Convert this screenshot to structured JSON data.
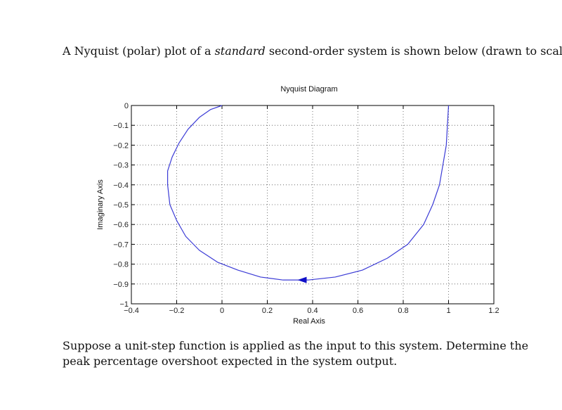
{
  "intro": {
    "before": "A Nyquist (polar) plot of a ",
    "emphasis": "standard",
    "after": " second-order system is shown below (drawn to scale)."
  },
  "question": "Suppose a unit-step function is applied as the input to this system. Determine the peak percentage overshoot expected in the system output.",
  "chart_data": {
    "type": "line",
    "title": "Nyquist Diagram",
    "xlabel": "Real Axis",
    "ylabel": "Imaginary Axis",
    "xlim": [
      -0.4,
      1.2
    ],
    "ylim": [
      -1,
      0
    ],
    "xticks": [
      -0.4,
      -0.2,
      0,
      0.2,
      0.4,
      0.6,
      0.8,
      1,
      1.2
    ],
    "xtick_labels": [
      "−0.4",
      "−0.2",
      "0",
      "0.2",
      "0.4",
      "0.6",
      "0.8",
      "1",
      "1.2"
    ],
    "yticks": [
      0,
      -0.1,
      -0.2,
      -0.3,
      -0.4,
      -0.5,
      -0.6,
      -0.7,
      -0.8,
      -0.9,
      -1
    ],
    "ytick_labels": [
      "0",
      "−0.1",
      "−0.2",
      "−0.3",
      "−0.4",
      "−0.5",
      "−0.6",
      "−0.7",
      "−0.8",
      "−0.9",
      "−1"
    ],
    "grid": true,
    "grid_style": "dotted",
    "line_color": "#3b3bd6",
    "series": [
      {
        "x": [
          1.0,
          0.99,
          0.96,
          0.93,
          0.89,
          0.82,
          0.73,
          0.62,
          0.5,
          0.38,
          0.27,
          0.17,
          0.07,
          -0.02,
          -0.1,
          -0.16,
          -0.2,
          -0.23,
          -0.24,
          -0.24,
          -0.22,
          -0.19,
          -0.15,
          -0.1,
          -0.05,
          0.0
        ],
        "y": [
          0.0,
          -0.2,
          -0.4,
          -0.5,
          -0.6,
          -0.7,
          -0.77,
          -0.83,
          -0.865,
          -0.88,
          -0.88,
          -0.865,
          -0.83,
          -0.79,
          -0.73,
          -0.66,
          -0.58,
          -0.5,
          -0.4,
          -0.33,
          -0.26,
          -0.19,
          -0.12,
          -0.06,
          -0.02,
          0.0
        ]
      }
    ],
    "arrow": {
      "x": 0.355,
      "y": -0.88,
      "direction": "left"
    }
  }
}
